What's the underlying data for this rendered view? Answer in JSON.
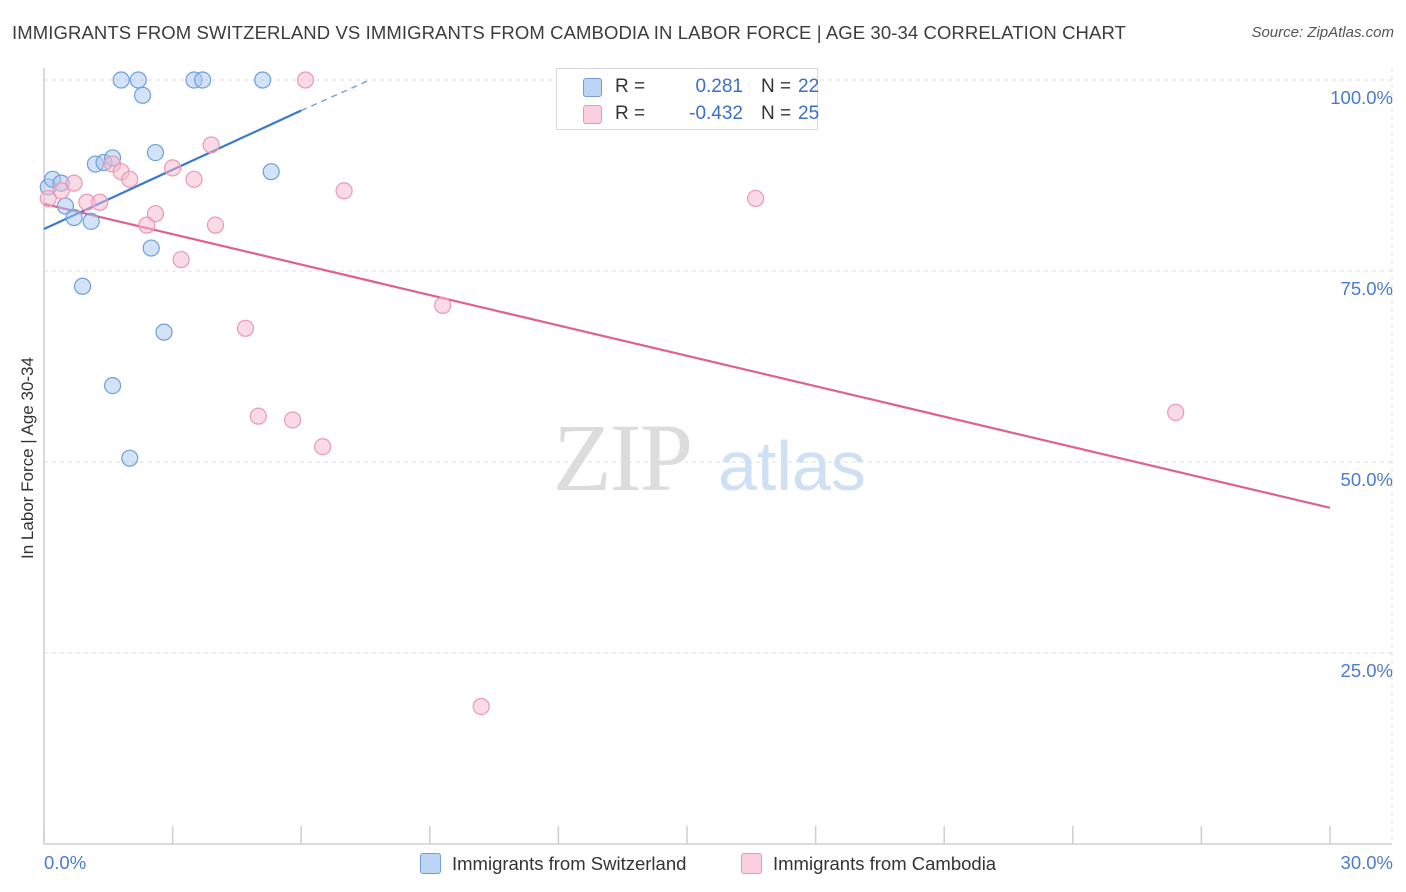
{
  "title": "IMMIGRANTS FROM SWITZERLAND VS IMMIGRANTS FROM CAMBODIA IN LABOR FORCE | AGE 30-34 CORRELATION CHART",
  "source": "Source: ZipAtlas.com",
  "watermark": {
    "zip": "ZIP",
    "atlas": "atlas"
  },
  "colors": {
    "blue_fill": "#a8c8f0",
    "blue_stroke": "#6f9edb",
    "blue_line": "#3b78d0",
    "pink_fill": "#f5b8cc",
    "pink_stroke": "#ec97b4",
    "pink_line": "#e0608e",
    "tick_label": "#4a7bd0",
    "grid": "#dddddd"
  },
  "legend": {
    "r_label": "R =",
    "n_label": "N =",
    "rows": [
      {
        "r": "0.281",
        "n": "22",
        "color": "blue"
      },
      {
        "r": "-0.432",
        "n": "25",
        "color": "pink"
      }
    ]
  },
  "chart_data": {
    "type": "scatter",
    "title": "IMMIGRANTS FROM SWITZERLAND VS IMMIGRANTS FROM CAMBODIA IN LABOR FORCE | AGE 30-34 CORRELATION CHART",
    "xlabel": "",
    "ylabel": "In Labor Force | Age 30-34",
    "xlim": [
      0,
      30
    ],
    "ylim": [
      0,
      100
    ],
    "x_tick_labels": [
      "0.0%",
      "30.0%"
    ],
    "y_ticks": [
      25,
      50,
      75,
      100
    ],
    "y_tick_labels": [
      "25.0%",
      "50.0%",
      "75.0%",
      "100.0%"
    ],
    "grid": true,
    "series": [
      {
        "name": "Immigrants from Switzerland",
        "color": "blue",
        "points": [
          {
            "x": 0.1,
            "y": 86
          },
          {
            "x": 0.2,
            "y": 87
          },
          {
            "x": 0.4,
            "y": 86.5
          },
          {
            "x": 0.5,
            "y": 83.5
          },
          {
            "x": 0.7,
            "y": 82
          },
          {
            "x": 0.9,
            "y": 73
          },
          {
            "x": 1.1,
            "y": 81.5
          },
          {
            "x": 1.2,
            "y": 89
          },
          {
            "x": 1.4,
            "y": 89.2
          },
          {
            "x": 1.6,
            "y": 89.8
          },
          {
            "x": 1.6,
            "y": 60
          },
          {
            "x": 1.8,
            "y": 100
          },
          {
            "x": 2.0,
            "y": 50.5
          },
          {
            "x": 2.2,
            "y": 100
          },
          {
            "x": 2.3,
            "y": 98
          },
          {
            "x": 2.5,
            "y": 78
          },
          {
            "x": 2.6,
            "y": 90.5
          },
          {
            "x": 2.8,
            "y": 67
          },
          {
            "x": 3.5,
            "y": 100
          },
          {
            "x": 3.7,
            "y": 100
          },
          {
            "x": 5.1,
            "y": 100
          },
          {
            "x": 5.3,
            "y": 88
          }
        ],
        "trend": {
          "x1": 0,
          "y1": 80.5,
          "x2": 6.0,
          "y2": 96.0,
          "dashed_to_x": 7.6,
          "dashed_to_y": 100
        }
      },
      {
        "name": "Immigrants from Cambodia",
        "color": "pink",
        "points": [
          {
            "x": 0.1,
            "y": 84.5
          },
          {
            "x": 0.4,
            "y": 85.5
          },
          {
            "x": 0.7,
            "y": 86.5
          },
          {
            "x": 1.0,
            "y": 84
          },
          {
            "x": 1.3,
            "y": 84
          },
          {
            "x": 1.6,
            "y": 89
          },
          {
            "x": 1.8,
            "y": 88
          },
          {
            "x": 2.0,
            "y": 87
          },
          {
            "x": 2.4,
            "y": 81
          },
          {
            "x": 2.6,
            "y": 82.5
          },
          {
            "x": 3.0,
            "y": 88.5
          },
          {
            "x": 3.2,
            "y": 76.5
          },
          {
            "x": 3.5,
            "y": 87
          },
          {
            "x": 3.9,
            "y": 91.5
          },
          {
            "x": 4.0,
            "y": 81
          },
          {
            "x": 4.7,
            "y": 67.5
          },
          {
            "x": 5.0,
            "y": 56
          },
          {
            "x": 5.8,
            "y": 55.5
          },
          {
            "x": 6.1,
            "y": 100
          },
          {
            "x": 6.5,
            "y": 52
          },
          {
            "x": 7.0,
            "y": 85.5
          },
          {
            "x": 9.3,
            "y": 70.5
          },
          {
            "x": 10.2,
            "y": 18
          },
          {
            "x": 16.6,
            "y": 84.5
          },
          {
            "x": 26.4,
            "y": 56.5
          }
        ],
        "trend": {
          "x1": 0,
          "y1": 83.8,
          "x2": 30,
          "y2": 44.0
        }
      }
    ]
  }
}
